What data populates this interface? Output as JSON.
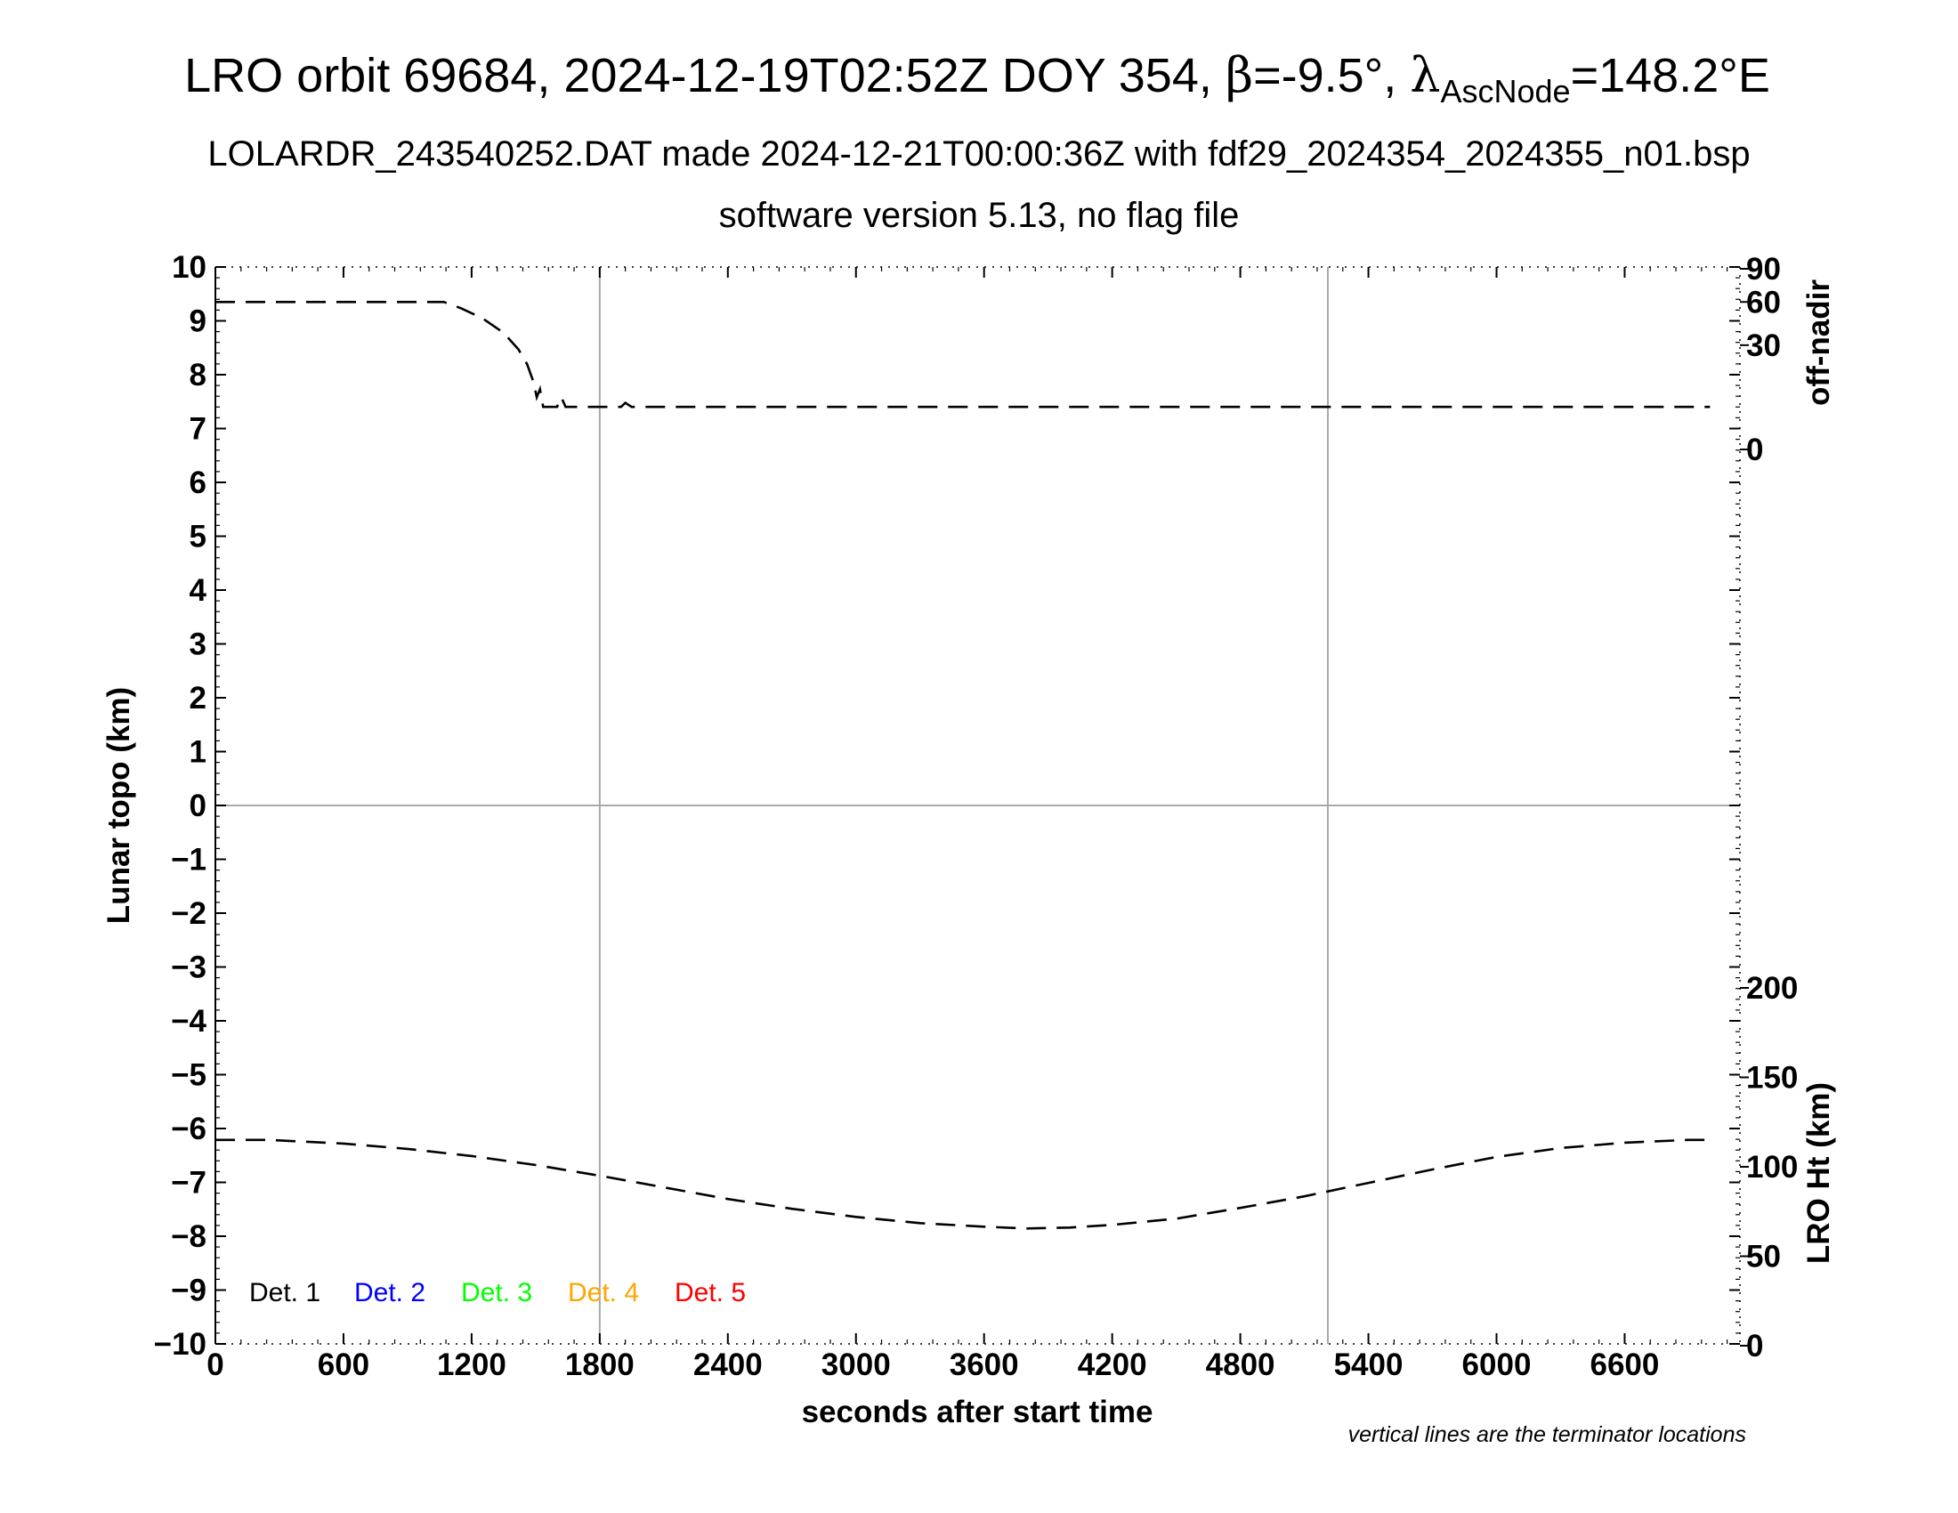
{
  "chart_data": {
    "type": "line",
    "title": {
      "main_prefix": "LRO orbit 69684, 2024-12-19T02:52Z DOY 354, ",
      "beta_symbol": "β",
      "beta_text": "=-9.5°, ",
      "lambda_symbol": "λ",
      "lambda_subscript": "AscNode",
      "lambda_text": "=148.2°E"
    },
    "subtitle": "LOLARDR_243540252.DAT made 2024-12-21T00:00:36Z with fdf29_2024354_2024355_n01.bsp",
    "subtitle2": "software version 5.13, no flag file",
    "xlabel": "seconds after start time",
    "ylabel_left": "Lunar topo (km)",
    "ylabel_right_top": "off-nadir",
    "ylabel_right_bottom": "LRO Ht (km)",
    "note": "vertical lines are the terminator locations",
    "xlim": [
      0,
      7140
    ],
    "ylim_left": [
      -10,
      10
    ],
    "x_ticks": [
      "0",
      "600",
      "1200",
      "1800",
      "2400",
      "3000",
      "3600",
      "4200",
      "4800",
      "5400",
      "6000",
      "6600"
    ],
    "x_tick_values": [
      0,
      600,
      1200,
      1800,
      2400,
      3000,
      3600,
      4200,
      4800,
      5400,
      6000,
      6600
    ],
    "y_left_ticks": [
      "10",
      "9",
      "8",
      "7",
      "6",
      "5",
      "4",
      "3",
      "2",
      "1",
      "0",
      "−1",
      "−2",
      "−3",
      "−4",
      "−5",
      "−6",
      "−7",
      "−8",
      "−9",
      "−10"
    ],
    "y_left_tick_values": [
      10,
      9,
      8,
      7,
      6,
      5,
      4,
      3,
      2,
      1,
      0,
      -1,
      -2,
      -3,
      -4,
      -5,
      -6,
      -7,
      -8,
      -9,
      -10
    ],
    "off_nadir_ticks": [
      "90",
      "60",
      "30",
      "0"
    ],
    "off_nadir_tick_values": [
      90,
      60,
      30,
      0
    ],
    "lro_ht_ticks": [
      "200",
      "150",
      "100",
      "50",
      "0"
    ],
    "lro_ht_tick_values": [
      200,
      150,
      100,
      50,
      0
    ],
    "terminator_lines_x": [
      1800,
      5210
    ],
    "legend": [
      {
        "label": "Det. 1",
        "color": "#000000"
      },
      {
        "label": "Det. 2",
        "color": "#0000ff"
      },
      {
        "label": "Det. 3",
        "color": "#00ff00"
      },
      {
        "label": "Det. 4",
        "color": "#ffa500"
      },
      {
        "label": "Det. 5",
        "color": "#ff0000"
      }
    ],
    "series": [
      {
        "axis": "off-nadir",
        "style": "dashed",
        "x": [
          0,
          300,
          600,
          900,
          1070,
          1150,
          1250,
          1350,
          1420,
          1460,
          1490,
          1505,
          1520,
          1535,
          1550,
          1600,
          1620,
          1640,
          1660,
          1700,
          1800,
          1900,
          1920,
          1950,
          2100,
          2150,
          2400,
          3000,
          4000,
          5000,
          6000,
          7000
        ],
        "y": [
          60,
          60,
          60,
          60,
          60,
          55,
          47.5,
          37.5,
          27.5,
          20,
          12.5,
          7.5,
          10,
          5,
          5,
          5,
          7.5,
          5,
          5,
          5,
          5,
          5,
          6,
          5,
          5,
          5,
          5,
          5,
          5,
          5,
          5,
          5
        ]
      },
      {
        "axis": "lro-ht",
        "style": "dashed",
        "x": [
          0,
          250,
          600,
          900,
          1200,
          1500,
          1800,
          2100,
          2400,
          2700,
          3000,
          3300,
          3600,
          3800,
          4000,
          4200,
          4500,
          4800,
          5100,
          5400,
          5700,
          6000,
          6300,
          6600,
          6900,
          7000
        ],
        "y": [
          115,
          115,
          113,
          110,
          106,
          101,
          95,
          88.5,
          82,
          76.5,
          72,
          68.5,
          66.5,
          65.5,
          66,
          67.5,
          71,
          77,
          83.5,
          91,
          98.5,
          105.5,
          110.5,
          113.5,
          115,
          115
        ]
      }
    ]
  }
}
